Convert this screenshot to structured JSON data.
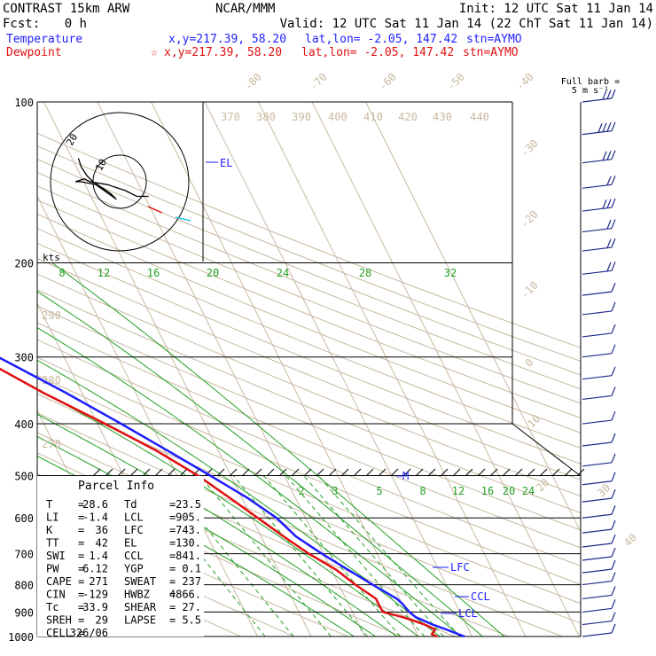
{
  "header": {
    "model": "CONTRAST 15km ARW",
    "org": "NCAR/MMM",
    "init": "Init: 12 UTC Sat 11 Jan 14",
    "fcst_label": "Fcst:",
    "fcst_value": "0 h",
    "valid": "Valid: 12 UTC Sat 11 Jan 14 (22 ChT Sat 11 Jan 14)"
  },
  "legend": {
    "temperature": {
      "label": "Temperature",
      "xy": "x,y=217.39, 58.20",
      "latlon": "lat,lon= -2.05, 147.42",
      "stn": "stn=AYMO",
      "color": "#1e1eff"
    },
    "dewpoint": {
      "label": "Dewpoint",
      "marker": "☆",
      "xy": "x,y=217.39, 58.20",
      "latlon": "lat,lon= -2.05, 147.42",
      "stn": "stn=AYMO",
      "color": "#e01010"
    }
  },
  "barbs_title": {
    "line1": "Full barb =",
    "line2": "5 m s⁻¹"
  },
  "hodograph": {
    "units": "kts",
    "ring_labels": [
      "20",
      "10"
    ]
  },
  "parcel": {
    "title": "Parcel Info",
    "rows": [
      {
        "k1": "T",
        "v1": "28.6",
        "k2": "Td",
        "v2": "23.5"
      },
      {
        "k1": "LI",
        "v1": "-1.4",
        "k2": "LCL",
        "v2": "905."
      },
      {
        "k1": "K",
        "v1": "36",
        "k2": "LFC",
        "v2": "743."
      },
      {
        "k1": "TT",
        "v1": "42",
        "k2": "EL",
        "v2": "130."
      },
      {
        "k1": "SWI",
        "v1": "1.4",
        "k2": "CCL",
        "v2": "841."
      },
      {
        "k1": "PW",
        "v1": "6.12",
        "k2": "YGP",
        "v2": "0.1"
      },
      {
        "k1": "CAPE",
        "v1": "271",
        "k2": "SWEAT",
        "v2": "237"
      },
      {
        "k1": "CIN",
        "v1": "-129",
        "k2": "HWBZ",
        "v2": "4866."
      },
      {
        "k1": "Tc",
        "v1": "33.9",
        "k2": "SHEAR",
        "v2": "27."
      },
      {
        "k1": "SREH",
        "v1": "29",
        "k2": "LAPSE",
        "v2": "5.5"
      },
      {
        "k1": "CELL",
        "v1": "326/06",
        "k2": "",
        "v2": ""
      }
    ]
  },
  "level_markers": {
    "el": "EL",
    "lfc": "LFC",
    "ccl": "CCL",
    "lcl": "LCL",
    "m": "M"
  },
  "colors": {
    "temperature": "#1e1eff",
    "dewpoint": "#e01010",
    "isotherm": "#c8b8a0",
    "dry_adiabat": "#c8b8a0",
    "moist_adiabat": "#22a022",
    "mixing_ratio": "#22a022",
    "barb": "#1e2a8a",
    "hodo_trace": "#000000",
    "hodo_start": "#e01010",
    "hodo_end": "#30c0e0"
  },
  "chart_data": {
    "type": "line",
    "pressure_levels": [
      100,
      200,
      300,
      400,
      500,
      600,
      700,
      800,
      900,
      1000
    ],
    "isotherm_labels": [
      "-80",
      "-70",
      "-60",
      "-50",
      "-40",
      "-30",
      "-20",
      "-10",
      "0",
      "10",
      "20",
      "30",
      "40"
    ],
    "theta_labels_top": [
      "370",
      "380",
      "390",
      "400",
      "410",
      "420",
      "430",
      "440"
    ],
    "theta_labels_left": [
      "290",
      "280",
      "270"
    ],
    "moist_labels": [
      "8",
      "12",
      "16",
      "20",
      "24",
      "28",
      "32"
    ],
    "mixing_labels": [
      "2",
      "3",
      "5",
      "8",
      "12",
      "16",
      "20",
      "24"
    ],
    "series": [
      {
        "name": "Temperature",
        "pressure": [
          1000,
          970,
          950,
          920,
          900,
          870,
          850,
          800,
          750,
          700,
          650,
          600,
          550,
          500,
          450,
          400,
          350,
          300,
          250,
          200,
          170,
          150,
          130,
          115,
          100
        ],
        "temp": [
          28.6,
          25.8,
          23.8,
          21.3,
          20.6,
          20.1,
          19.5,
          16.3,
          13.1,
          9.7,
          6.5,
          4.6,
          1.0,
          -3.8,
          -9.3,
          -15.6,
          -23.0,
          -32.3,
          -42.0,
          -54.6,
          -62.2,
          -68.3,
          -73.9,
          -79.2,
          -84.0
        ]
      },
      {
        "name": "Dewpoint",
        "pressure": [
          1000,
          990,
          970,
          950,
          920,
          900,
          880,
          850,
          800,
          750,
          700,
          650,
          600,
          550,
          500,
          450,
          400,
          350,
          300,
          250,
          200,
          170,
          150,
          130,
          115,
          100
        ],
        "temp": [
          23.5,
          22.7,
          23.8,
          22.3,
          18.9,
          15.7,
          15.6,
          15.6,
          13.1,
          10.9,
          7.3,
          4.2,
          1.1,
          -2.3,
          -6.1,
          -11.4,
          -18.6,
          -27.2,
          -36.0,
          -46.8,
          -60.2,
          -68.6,
          -74.0,
          -80.3,
          -85.8,
          -90.5
        ]
      }
    ],
    "wind_barbs": [
      {
        "p": 100,
        "spd": 17
      },
      {
        "p": 115,
        "spd": 20
      },
      {
        "p": 130,
        "spd": 15
      },
      {
        "p": 145,
        "spd": 12
      },
      {
        "p": 160,
        "spd": 14
      },
      {
        "p": 175,
        "spd": 11
      },
      {
        "p": 190,
        "spd": 9
      },
      {
        "p": 210,
        "spd": 8
      },
      {
        "p": 230,
        "spd": 7
      },
      {
        "p": 250,
        "spd": 6
      },
      {
        "p": 275,
        "spd": 6
      },
      {
        "p": 300,
        "spd": 5
      },
      {
        "p": 330,
        "spd": 4
      },
      {
        "p": 360,
        "spd": 4
      },
      {
        "p": 400,
        "spd": 3
      },
      {
        "p": 440,
        "spd": 3
      },
      {
        "p": 480,
        "spd": 4
      },
      {
        "p": 520,
        "spd": 3
      },
      {
        "p": 560,
        "spd": 3
      },
      {
        "p": 600,
        "spd": 4
      },
      {
        "p": 640,
        "spd": 6
      },
      {
        "p": 680,
        "spd": 7
      },
      {
        "p": 720,
        "spd": 7
      },
      {
        "p": 760,
        "spd": 6
      },
      {
        "p": 800,
        "spd": 6
      },
      {
        "p": 850,
        "spd": 5
      },
      {
        "p": 900,
        "spd": 4
      },
      {
        "p": 950,
        "spd": 4
      },
      {
        "p": 1000,
        "spd": 3
      }
    ],
    "hodograph_trace": [
      [
        -2,
        8
      ],
      [
        -1,
        5
      ],
      [
        1,
        2
      ],
      [
        3,
        0
      ],
      [
        6,
        -2
      ],
      [
        9,
        -4
      ],
      [
        11,
        -6
      ],
      [
        4,
        -1
      ],
      [
        -1,
        0
      ],
      [
        -3,
        0
      ],
      [
        0,
        1
      ],
      [
        2,
        0
      ],
      [
        8,
        -1
      ],
      [
        14,
        -3
      ],
      [
        18,
        -5
      ],
      [
        22,
        -5
      ]
    ],
    "xlabel": "",
    "ylabel": ""
  }
}
